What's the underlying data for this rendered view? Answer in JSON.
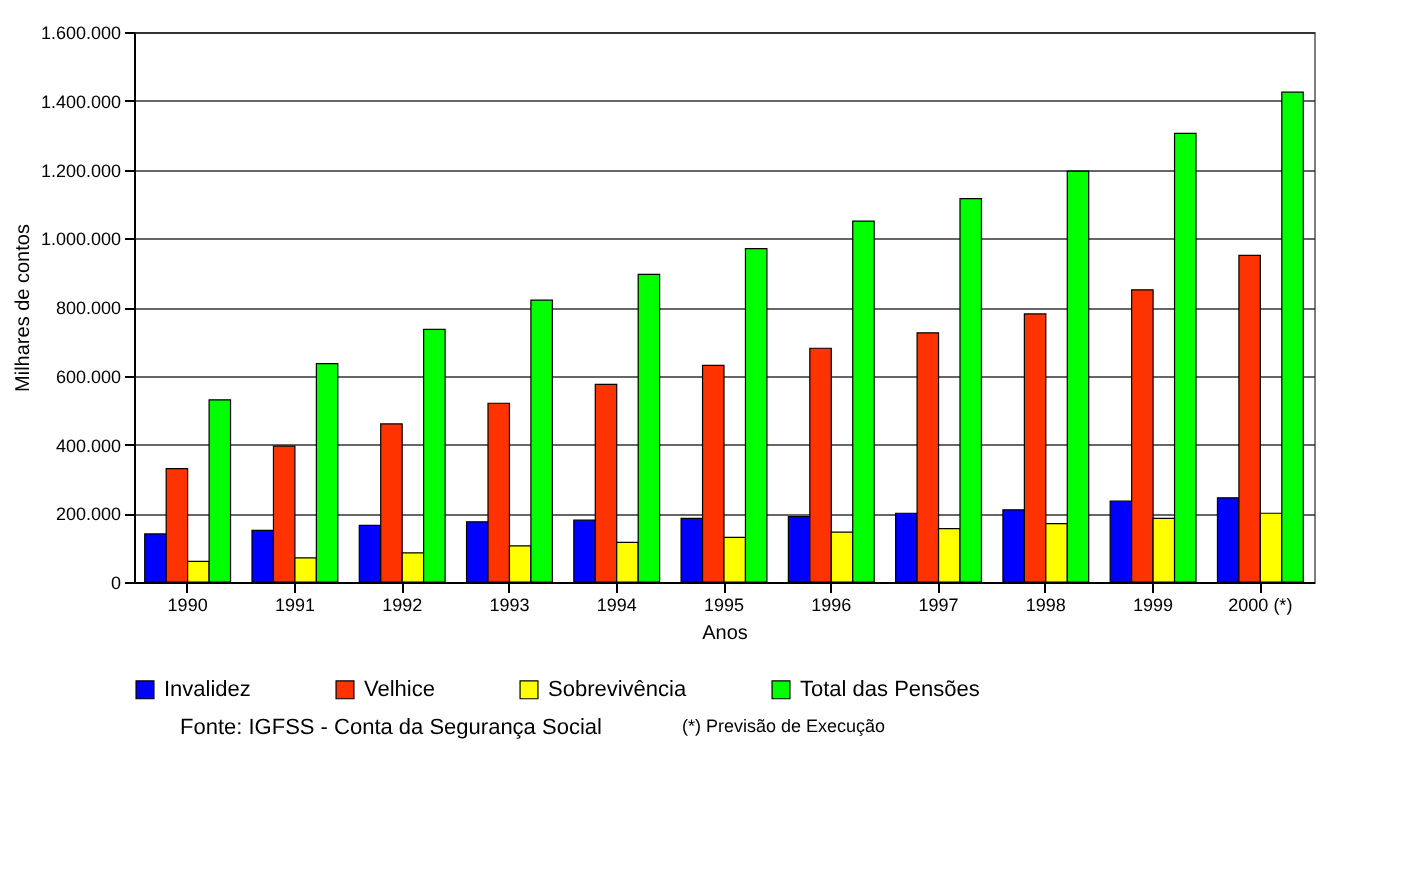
{
  "chart_data": {
    "type": "bar",
    "xlabel": "Anos",
    "ylabel": "Milhares de contos",
    "categories": [
      "1990",
      "1991",
      "1992",
      "1993",
      "1994",
      "1995",
      "1996",
      "1997",
      "1998",
      "1999",
      "2000 (*)"
    ],
    "series": [
      {
        "name": "Invalidez",
        "color": "#0000ff",
        "values": [
          140000,
          150000,
          165000,
          175000,
          180000,
          185000,
          190000,
          200000,
          210000,
          235000,
          245000
        ]
      },
      {
        "name": "Velhice",
        "color": "#ff3300",
        "values": [
          330000,
          395000,
          460000,
          520000,
          575000,
          630000,
          680000,
          725000,
          780000,
          850000,
          950000
        ]
      },
      {
        "name": "Sobrevivência",
        "color": "#ffff00",
        "values": [
          60000,
          70000,
          85000,
          105000,
          115000,
          130000,
          145000,
          155000,
          170000,
          185000,
          200000
        ]
      },
      {
        "name": "Total das Pensões",
        "color": "#00ff00",
        "values": [
          530000,
          635000,
          735000,
          820000,
          895000,
          970000,
          1050000,
          1115000,
          1195000,
          1305000,
          1425000
        ]
      }
    ],
    "ylim": [
      0,
      1600000
    ],
    "yticks": [
      {
        "value": 0,
        "label": "0"
      },
      {
        "value": 200000,
        "label": "200.000"
      },
      {
        "value": 400000,
        "label": "400.000"
      },
      {
        "value": 600000,
        "label": "600.000"
      },
      {
        "value": 800000,
        "label": "800.000"
      },
      {
        "value": 1000000,
        "label": "1.000.000"
      },
      {
        "value": 1200000,
        "label": "1.200.000"
      },
      {
        "value": 1400000,
        "label": "1.400.000"
      },
      {
        "value": 1600000,
        "label": "1.600.000"
      }
    ],
    "grid": "y",
    "legend": "bottom",
    "annotations": [
      "Fonte: IGFSS - Conta da Segurança Social",
      "(*) Previsão de Execução"
    ]
  }
}
